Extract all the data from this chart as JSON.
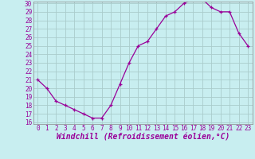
{
  "x": [
    0,
    1,
    2,
    3,
    4,
    5,
    6,
    7,
    8,
    9,
    10,
    11,
    12,
    13,
    14,
    15,
    16,
    17,
    18,
    19,
    20,
    21,
    22,
    23
  ],
  "y": [
    21,
    20,
    18.5,
    18,
    17.5,
    17,
    16.5,
    16.5,
    18,
    20.5,
    23,
    25,
    25.5,
    27,
    28.5,
    29,
    30,
    30.5,
    30.5,
    29.5,
    29,
    29,
    26.5,
    25
  ],
  "line_color": "#990099",
  "marker": "+",
  "marker_size": 3,
  "bg_color": "#c8eef0",
  "grid_color": "#aacccc",
  "xlabel": "Windchill (Refroidissement éolien,°C)",
  "xlabel_color": "#990099",
  "tick_color": "#990099",
  "ylim": [
    16,
    30
  ],
  "xlim": [
    -0.5,
    23.5
  ],
  "yticks": [
    16,
    17,
    18,
    19,
    20,
    21,
    22,
    23,
    24,
    25,
    26,
    27,
    28,
    29,
    30
  ],
  "xticks": [
    0,
    1,
    2,
    3,
    4,
    5,
    6,
    7,
    8,
    9,
    10,
    11,
    12,
    13,
    14,
    15,
    16,
    17,
    18,
    19,
    20,
    21,
    22,
    23
  ],
  "tick_fontsize": 5.5,
  "xlabel_fontsize": 7.0,
  "linewidth": 0.9,
  "markeredgewidth": 0.9
}
